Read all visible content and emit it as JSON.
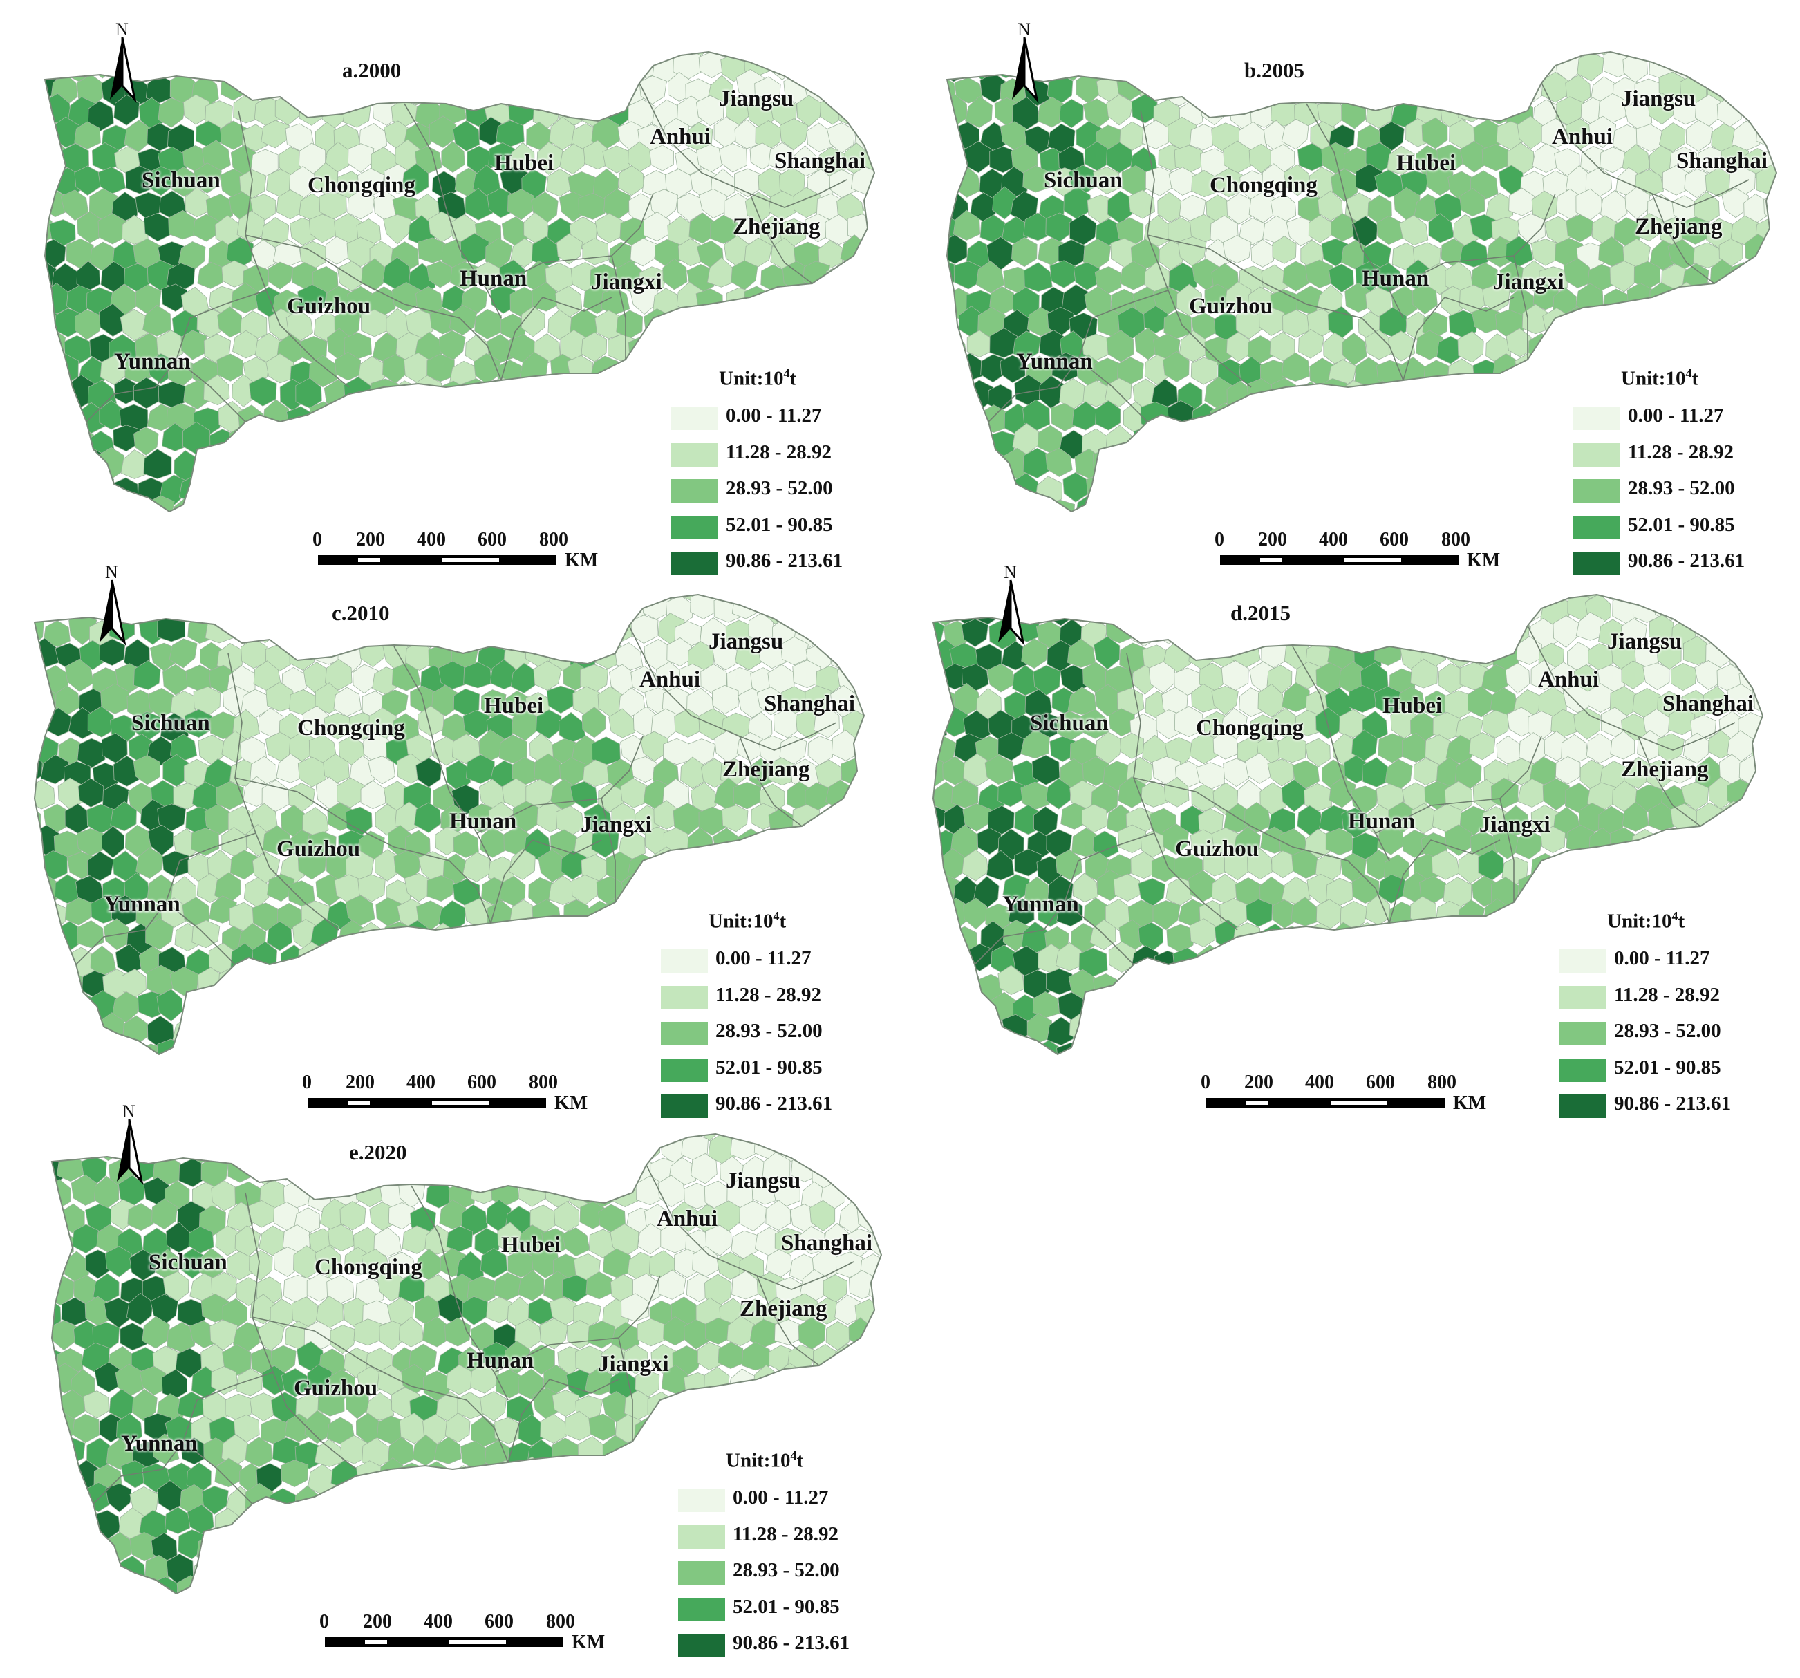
{
  "legend": {
    "unit_label": "Unit:10",
    "unit_sup": "4",
    "unit_suffix": "t",
    "classes": [
      {
        "label": "0.00 - 11.27",
        "color": "#eef7ea"
      },
      {
        "label": "11.28  -  28.92",
        "color": "#c4e6bc"
      },
      {
        "label": "28.93  -  52.00",
        "color": "#82c781"
      },
      {
        "label": "52.01 - 90.85",
        "color": "#46a95b"
      },
      {
        "label": "90.86 - 213.61",
        "color": "#1a6d37"
      }
    ]
  },
  "scalebar": {
    "ticks": [
      "0",
      "200",
      "400",
      "600",
      "800"
    ],
    "unit": "KM"
  },
  "north_arrow": {
    "label": "N",
    "icon": "north-arrow-icon"
  },
  "provinces": [
    "Sichuan",
    "Chongqing",
    "Hubei",
    "Anhui",
    "Jiangsu",
    "Shanghai",
    "Zhejiang",
    "Hunan",
    "Jiangxi",
    "Guizhou",
    "Yunnan"
  ],
  "panels": [
    {
      "id": "a",
      "title": "a.2000",
      "labels": {
        "Sichuan": "Sichuan",
        "Chongqing": "Chongqing",
        "Hubei": "Hubei",
        "Anhui": "Anhui",
        "Jiangsu": "Jiangsu",
        "Shanghai": "Shanghai",
        "Zhejiang": "Zhejiang",
        "Hunan": "Hunan",
        "Jiangxi": "Jiangxi",
        "Guizhou": "Guizhou",
        "Yunnan": "Yunnan"
      }
    },
    {
      "id": "b",
      "title": "b.2005",
      "labels": {
        "Sichuan": "Sichuan",
        "Chongqing": "Chongqing",
        "Hubei": "Hubei",
        "Anhui": "Anhui",
        "Jiangsu": "Jiangsu",
        "Shanghai": "Shanghai",
        "Zhejiang": "Zhejiang",
        "Hunan": "Hunan",
        "Jiangxi": "Jiangxi",
        "Guizhou": "Guizhou",
        "Yunnan": "Yunnan"
      }
    },
    {
      "id": "c",
      "title": "c.2010",
      "labels": {
        "Sichuan": "Sichuan",
        "Chongqing": "Chongqing",
        "Hubei": "Hubei",
        "Anhui": "Anhui",
        "Jiangsu": "Jiangsu",
        "Shanghai": "Shanghai",
        "Zhejiang": "Zhejiang",
        "Hunan": "Hunan",
        "Jiangxi": "Jiangxi",
        "Guizhou": "Guizhou",
        "Yunnan": "Yunnan"
      }
    },
    {
      "id": "d",
      "title": "d.2015",
      "labels": {
        "Sichuan": "Sichuan",
        "Chongqing": "Chongqing",
        "Hubei": "Hubei",
        "Anhui": "Anhui",
        "Jiangsu": "Jiangsu",
        "Shanghai": "Shanghai",
        "Zhejiang": "Zhejiang",
        "Hunan": "Hunan",
        "Jiangxi": "Jiangxi",
        "Guizhou": "Guizhou",
        "Yunnan": "Yunnan"
      }
    },
    {
      "id": "e",
      "title": "e.2020",
      "labels": {
        "Sichuan": "Sichuan",
        "Chongqing": "Chongqing",
        "Hubei": "Hubei",
        "Anhui": "Anhui",
        "Jiangsu": "Jiangsu",
        "Shanghai": "Shanghai",
        "Zhejiang": "Zhejiang",
        "Hunan": "Hunan",
        "Jiangxi": "Jiangxi",
        "Guizhou": "Guizhou",
        "Yunnan": "Yunnan"
      }
    }
  ]
}
